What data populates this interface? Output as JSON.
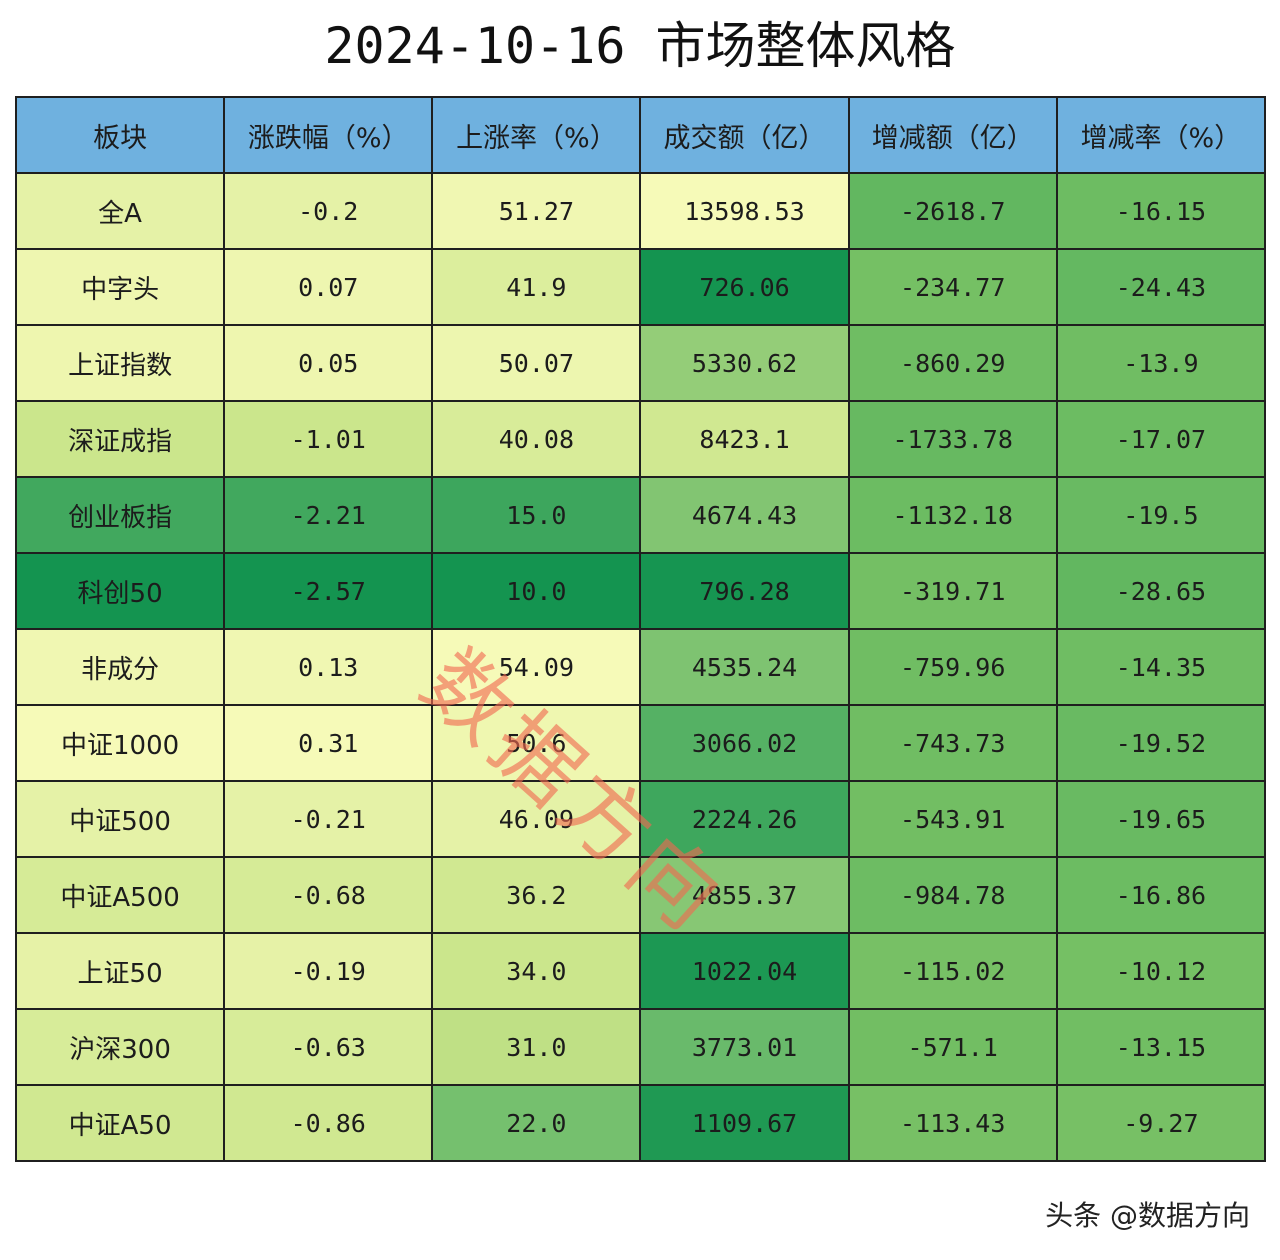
{
  "title": "2024-10-16 市场整体风格",
  "watermark": "数据方向",
  "footer": "头条 @数据方向",
  "colors": {
    "header_bg": "#6fb1df",
    "border": "#1f1f1f",
    "scale_high": "#f6fab8",
    "scale_mid": "#c7e488",
    "scale_low": "#149450",
    "neg_scale_high": "#9dd26d",
    "neg_scale_low": "#62b760"
  },
  "chart_data": {
    "type": "table",
    "title": "2024-10-16 市场整体风格",
    "columns": [
      "板块",
      "涨跌幅（%）",
      "上涨率（%）",
      "成交额（亿）",
      "增减额（亿）",
      "增减率（%）"
    ],
    "rows": [
      {
        "name": "全A",
        "values": [
          "-0.2",
          "51.27",
          "13598.53",
          "-2618.7",
          "-16.15"
        ]
      },
      {
        "name": "中字头",
        "values": [
          "0.07",
          "41.9",
          "726.06",
          "-234.77",
          "-24.43"
        ]
      },
      {
        "name": "上证指数",
        "values": [
          "0.05",
          "50.07",
          "5330.62",
          "-860.29",
          "-13.9"
        ]
      },
      {
        "name": "深证成指",
        "values": [
          "-1.01",
          "40.08",
          "8423.1",
          "-1733.78",
          "-17.07"
        ]
      },
      {
        "name": "创业板指",
        "values": [
          "-2.21",
          "15.0",
          "4674.43",
          "-1132.18",
          "-19.5"
        ]
      },
      {
        "name": "科创50",
        "values": [
          "-2.57",
          "10.0",
          "796.28",
          "-319.71",
          "-28.65"
        ]
      },
      {
        "name": "非成分",
        "values": [
          "0.13",
          "54.09",
          "4535.24",
          "-759.96",
          "-14.35"
        ]
      },
      {
        "name": "中证1000",
        "values": [
          "0.31",
          "50.6",
          "3066.02",
          "-743.73",
          "-19.52"
        ]
      },
      {
        "name": "中证500",
        "values": [
          "-0.21",
          "46.09",
          "2224.26",
          "-543.91",
          "-19.65"
        ]
      },
      {
        "name": "中证A500",
        "values": [
          "-0.68",
          "36.2",
          "4855.37",
          "-984.78",
          "-16.86"
        ]
      },
      {
        "name": "上证50",
        "values": [
          "-0.19",
          "34.0",
          "1022.04",
          "-115.02",
          "-10.12"
        ]
      },
      {
        "name": "沪深300",
        "values": [
          "-0.63",
          "31.0",
          "3773.01",
          "-571.1",
          "-13.15"
        ]
      },
      {
        "name": "中证A50",
        "values": [
          "-0.86",
          "22.0",
          "1109.67",
          "-113.43",
          "-9.27"
        ]
      }
    ]
  }
}
